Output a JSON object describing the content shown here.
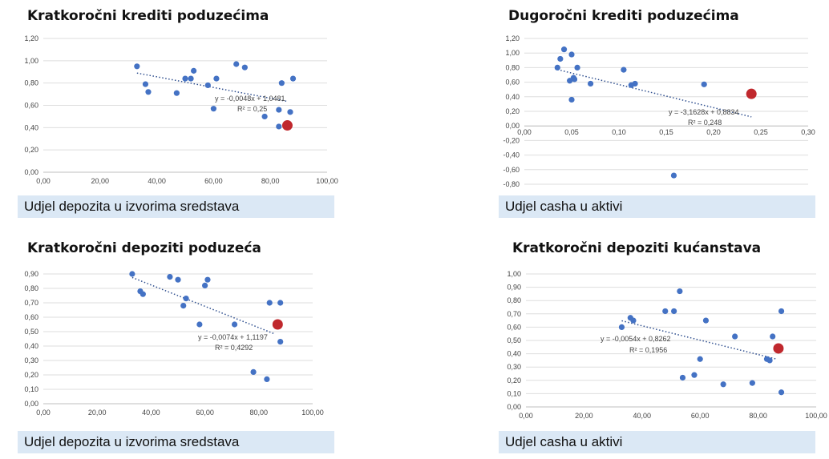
{
  "colors": {
    "points": "#4472c4",
    "highlight": "#c0282d",
    "trend": "#2f4f8f",
    "grid": "#dedede",
    "band": "#dbe8f5"
  },
  "chart_data": [
    {
      "type": "scatter",
      "title": "Kratkoročni krediti poduzećima",
      "xlabel": "Udjel depozita u izvorima sredstava",
      "xlim": [
        0,
        100
      ],
      "ylim": [
        0,
        1.2
      ],
      "xticks": [
        "0,00",
        "20,00",
        "40,00",
        "60,00",
        "80,00",
        "100,00"
      ],
      "yticks": [
        "0,00",
        "0,20",
        "0,40",
        "0,60",
        "0,80",
        "1,00",
        "1,20"
      ],
      "grid": true,
      "trendline": {
        "slope": -0.0048,
        "intercept": 1.0481,
        "x_range": [
          33,
          86
        ]
      },
      "equation": "y = -0,0048x + 1,0481",
      "r2": "R² = 0,25",
      "points": [
        [
          33,
          0.95
        ],
        [
          36,
          0.79
        ],
        [
          37,
          0.72
        ],
        [
          47,
          0.71
        ],
        [
          50,
          0.84
        ],
        [
          52,
          0.84
        ],
        [
          53,
          0.91
        ],
        [
          58,
          0.78
        ],
        [
          60,
          0.57
        ],
        [
          61,
          0.84
        ],
        [
          68,
          0.97
        ],
        [
          71,
          0.94
        ],
        [
          78,
          0.5
        ],
        [
          83,
          0.56
        ],
        [
          83,
          0.41
        ],
        [
          84,
          0.8
        ],
        [
          87,
          0.54
        ],
        [
          88,
          0.84
        ]
      ],
      "highlight": [
        [
          86,
          0.42
        ]
      ]
    },
    {
      "type": "scatter",
      "title": "Dugoročni krediti poduzećima",
      "xlabel": "Udjel casha u aktivi",
      "xlim": [
        0,
        0.3
      ],
      "ylim": [
        -0.8,
        1.2
      ],
      "xticks": [
        "0,00",
        "0,05",
        "0,10",
        "0,15",
        "0,20",
        "0,25",
        "0,30"
      ],
      "yticks": [
        "-0,80",
        "-0,60",
        "-0,40",
        "-0,20",
        "0,00",
        "0,20",
        "0,40",
        "0,60",
        "0,80",
        "1,00",
        "1,20"
      ],
      "grid": true,
      "trendline": {
        "slope": -3.1628,
        "intercept": 0.8834,
        "x_range": [
          0.035,
          0.24
        ]
      },
      "equation": "y = -3,1628x + 0,8834",
      "r2": "R² = 0,248",
      "points": [
        [
          0.035,
          0.8
        ],
        [
          0.038,
          0.92
        ],
        [
          0.042,
          1.05
        ],
        [
          0.048,
          0.62
        ],
        [
          0.05,
          0.36
        ],
        [
          0.05,
          0.98
        ],
        [
          0.052,
          0.66
        ],
        [
          0.053,
          0.64
        ],
        [
          0.056,
          0.8
        ],
        [
          0.07,
          0.58
        ],
        [
          0.105,
          0.77
        ],
        [
          0.113,
          0.56
        ],
        [
          0.117,
          0.58
        ],
        [
          0.158,
          -0.68
        ],
        [
          0.19,
          0.57
        ]
      ],
      "highlight": [
        [
          0.24,
          0.44
        ]
      ]
    },
    {
      "type": "scatter",
      "title": "Kratkoročni depoziti poduzeća",
      "xlabel": "Udjel depozita u izvorima sredstava",
      "xlim": [
        0,
        100
      ],
      "ylim": [
        0,
        0.9
      ],
      "xticks": [
        "0,00",
        "20,00",
        "40,00",
        "60,00",
        "80,00",
        "100,00"
      ],
      "yticks": [
        "0,00",
        "0,10",
        "0,20",
        "0,30",
        "0,40",
        "0,50",
        "0,60",
        "0,70",
        "0,80",
        "0,90"
      ],
      "grid": true,
      "trendline": {
        "slope": -0.0074,
        "intercept": 1.1197,
        "x_range": [
          33,
          86
        ]
      },
      "equation": "y = -0,0074x + 1,1197",
      "r2": "R² = 0,4292",
      "points": [
        [
          33,
          0.9
        ],
        [
          36,
          0.78
        ],
        [
          37,
          0.76
        ],
        [
          47,
          0.88
        ],
        [
          50,
          0.86
        ],
        [
          52,
          0.68
        ],
        [
          53,
          0.73
        ],
        [
          58,
          0.55
        ],
        [
          60,
          0.82
        ],
        [
          61,
          0.86
        ],
        [
          71,
          0.55
        ],
        [
          78,
          0.22
        ],
        [
          83,
          0.17
        ],
        [
          84,
          0.7
        ],
        [
          88,
          0.7
        ],
        [
          88,
          0.43
        ]
      ],
      "highlight": [
        [
          87,
          0.55
        ]
      ]
    },
    {
      "type": "scatter",
      "title": "Kratkoročni depoziti kućanstava",
      "xlabel": "Udjel casha u aktivi",
      "xlim": [
        0,
        100
      ],
      "ylim": [
        0,
        1.0
      ],
      "xticks": [
        "0,00",
        "20,00",
        "40,00",
        "60,00",
        "80,00",
        "100,00"
      ],
      "yticks": [
        "0,00",
        "0,10",
        "0,20",
        "0,30",
        "0,40",
        "0,50",
        "0,60",
        "0,70",
        "0,80",
        "0,90",
        "1,00"
      ],
      "grid": true,
      "trendline": {
        "slope": -0.0054,
        "intercept": 0.8262,
        "x_range": [
          33,
          86
        ]
      },
      "equation": "y = -0,0054x + 0,8262",
      "r2": "R² = 0,1956",
      "points": [
        [
          33,
          0.6
        ],
        [
          36,
          0.67
        ],
        [
          37,
          0.65
        ],
        [
          48,
          0.72
        ],
        [
          51,
          0.72
        ],
        [
          53,
          0.87
        ],
        [
          54,
          0.22
        ],
        [
          58,
          0.24
        ],
        [
          60,
          0.36
        ],
        [
          62,
          0.65
        ],
        [
          68,
          0.17
        ],
        [
          72,
          0.53
        ],
        [
          78,
          0.18
        ],
        [
          83,
          0.36
        ],
        [
          84,
          0.35
        ],
        [
          85,
          0.53
        ],
        [
          88,
          0.72
        ],
        [
          88,
          0.11
        ]
      ],
      "highlight": [
        [
          87,
          0.44
        ]
      ]
    }
  ]
}
